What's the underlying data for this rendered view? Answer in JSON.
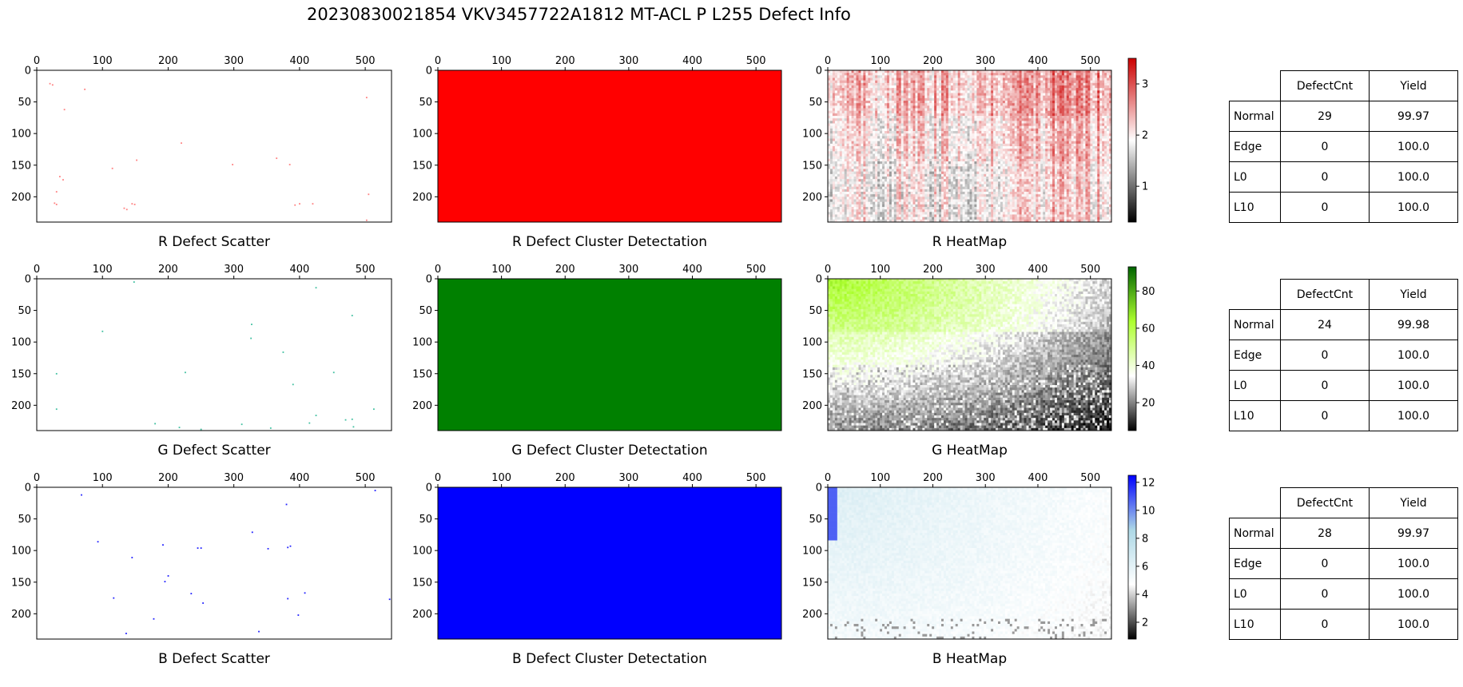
{
  "title": "20230830021854 VKV3457722A1812 MT-ACL P L255 Defect Info",
  "chart_data": [
    {
      "type": "scatter",
      "row": "R",
      "title": "R Defect Scatter",
      "color": "#ff8080",
      "xlim": [
        0,
        540
      ],
      "ylim": [
        240,
        0
      ],
      "xticks": [
        0,
        100,
        200,
        300,
        400,
        500
      ],
      "yticks": [
        0,
        50,
        100,
        150,
        200
      ],
      "points": [
        [
          20,
          21
        ],
        [
          24,
          23
        ],
        [
          73,
          30
        ],
        [
          42,
          62
        ],
        [
          220,
          115
        ],
        [
          115,
          155
        ],
        [
          152,
          142
        ],
        [
          35,
          168
        ],
        [
          40,
          173
        ],
        [
          298,
          149
        ],
        [
          365,
          139
        ],
        [
          385,
          149
        ],
        [
          30,
          192
        ],
        [
          27,
          210
        ],
        [
          30,
          212
        ],
        [
          145,
          211
        ],
        [
          149,
          212
        ],
        [
          133,
          218
        ],
        [
          137,
          220
        ],
        [
          393,
          213
        ],
        [
          400,
          211
        ],
        [
          420,
          211
        ],
        [
          505,
          196
        ],
        [
          502,
          43
        ],
        [
          502,
          237
        ]
      ]
    },
    {
      "type": "heatmap",
      "row": "R",
      "title": "R Defect Cluster Detectation",
      "color": "#ff0000",
      "xlim": [
        0,
        540
      ],
      "ylim": [
        240,
        0
      ],
      "xticks": [
        0,
        100,
        200,
        300,
        400,
        500
      ],
      "yticks": [
        0,
        50,
        100,
        150,
        200
      ]
    },
    {
      "type": "heatmap",
      "row": "R",
      "title": "R HeatMap",
      "cmap": [
        "#000000",
        "#ffffff",
        "#cc0000"
      ],
      "clim": [
        0.3,
        3.5
      ],
      "colorbar_ticks": [
        1,
        2,
        3
      ],
      "xlim": [
        0,
        540
      ],
      "ylim": [
        240,
        0
      ],
      "xticks": [
        0,
        100,
        200,
        300,
        400,
        500
      ],
      "yticks": [
        0,
        50,
        100,
        150,
        200
      ]
    },
    {
      "type": "table",
      "row": "R",
      "columns": [
        "DefectCnt",
        "Yield"
      ],
      "rows": [
        {
          "label": "Normal",
          "DefectCnt": "29",
          "Yield": "99.97"
        },
        {
          "label": "Edge",
          "DefectCnt": "0",
          "Yield": "100.0"
        },
        {
          "label": "L0",
          "DefectCnt": "0",
          "Yield": "100.0"
        },
        {
          "label": "L10",
          "DefectCnt": "0",
          "Yield": "100.0"
        }
      ]
    },
    {
      "type": "scatter",
      "row": "G",
      "title": "G Defect Scatter",
      "color": "#40c0a0",
      "xlim": [
        0,
        540
      ],
      "ylim": [
        240,
        0
      ],
      "xticks": [
        0,
        100,
        200,
        300,
        400,
        500
      ],
      "yticks": [
        0,
        50,
        100,
        150,
        200
      ],
      "points": [
        [
          148,
          5
        ],
        [
          425,
          14
        ],
        [
          480,
          58
        ],
        [
          100,
          83
        ],
        [
          327,
          72
        ],
        [
          326,
          94
        ],
        [
          375,
          116
        ],
        [
          30,
          150
        ],
        [
          226,
          148
        ],
        [
          390,
          167
        ],
        [
          452,
          148
        ],
        [
          30,
          206
        ],
        [
          180,
          229
        ],
        [
          217,
          235
        ],
        [
          312,
          230
        ],
        [
          356,
          236
        ],
        [
          415,
          228
        ],
        [
          425,
          216
        ],
        [
          470,
          223
        ],
        [
          480,
          222
        ],
        [
          482,
          234
        ],
        [
          513,
          206
        ],
        [
          250,
          238
        ]
      ]
    },
    {
      "type": "heatmap",
      "row": "G",
      "title": "G Defect Cluster Detectation",
      "color": "#008000",
      "xlim": [
        0,
        540
      ],
      "ylim": [
        240,
        0
      ],
      "xticks": [
        0,
        100,
        200,
        300,
        400,
        500
      ],
      "yticks": [
        0,
        50,
        100,
        150,
        200
      ]
    },
    {
      "type": "heatmap",
      "row": "G",
      "title": "G HeatMap",
      "cmap": [
        "#000000",
        "#ffffff",
        "#adff2f",
        "#006400"
      ],
      "clim": [
        5,
        93
      ],
      "colorbar_ticks": [
        20,
        40,
        60,
        80
      ],
      "xlim": [
        0,
        540
      ],
      "ylim": [
        240,
        0
      ],
      "xticks": [
        0,
        100,
        200,
        300,
        400,
        500
      ],
      "yticks": [
        0,
        50,
        100,
        150,
        200
      ]
    },
    {
      "type": "table",
      "row": "G",
      "columns": [
        "DefectCnt",
        "Yield"
      ],
      "rows": [
        {
          "label": "Normal",
          "DefectCnt": "24",
          "Yield": "99.98"
        },
        {
          "label": "Edge",
          "DefectCnt": "0",
          "Yield": "100.0"
        },
        {
          "label": "L0",
          "DefectCnt": "0",
          "Yield": "100.0"
        },
        {
          "label": "L10",
          "DefectCnt": "0",
          "Yield": "100.0"
        }
      ]
    },
    {
      "type": "scatter",
      "row": "B",
      "title": "B Defect Scatter",
      "color": "#2020ff",
      "xlim": [
        0,
        540
      ],
      "ylim": [
        240,
        0
      ],
      "xticks": [
        0,
        100,
        200,
        300,
        400,
        500
      ],
      "yticks": [
        0,
        50,
        100,
        150,
        200
      ],
      "points": [
        [
          68,
          12
        ],
        [
          515,
          5
        ],
        [
          380,
          27
        ],
        [
          93,
          86
        ],
        [
          192,
          91
        ],
        [
          328,
          71
        ],
        [
          245,
          96
        ],
        [
          250,
          96
        ],
        [
          352,
          97
        ],
        [
          382,
          95
        ],
        [
          386,
          93
        ],
        [
          145,
          111
        ],
        [
          200,
          140
        ],
        [
          195,
          149
        ],
        [
          117,
          175
        ],
        [
          235,
          168
        ],
        [
          253,
          183
        ],
        [
          382,
          176
        ],
        [
          408,
          167
        ],
        [
          178,
          208
        ],
        [
          398,
          202
        ],
        [
          537,
          177
        ],
        [
          136,
          231
        ],
        [
          338,
          228
        ]
      ]
    },
    {
      "type": "heatmap",
      "row": "B",
      "title": "B Defect Cluster Detectation",
      "color": "#0000ff",
      "xlim": [
        0,
        540
      ],
      "ylim": [
        240,
        0
      ],
      "xticks": [
        0,
        100,
        200,
        300,
        400,
        500
      ],
      "yticks": [
        0,
        50,
        100,
        150,
        200
      ]
    },
    {
      "type": "heatmap",
      "row": "B",
      "title": "B HeatMap",
      "cmap": [
        "#000000",
        "#ffffff",
        "#add8e6",
        "#0000ff"
      ],
      "clim": [
        0.8,
        12.5
      ],
      "colorbar_ticks": [
        2,
        4,
        6,
        8,
        10,
        12
      ],
      "xlim": [
        0,
        540
      ],
      "ylim": [
        240,
        0
      ],
      "xticks": [
        0,
        100,
        200,
        300,
        400,
        500
      ],
      "yticks": [
        0,
        50,
        100,
        150,
        200
      ]
    },
    {
      "type": "table",
      "row": "B",
      "columns": [
        "DefectCnt",
        "Yield"
      ],
      "rows": [
        {
          "label": "Normal",
          "DefectCnt": "28",
          "Yield": "99.97"
        },
        {
          "label": "Edge",
          "DefectCnt": "0",
          "Yield": "100.0"
        },
        {
          "label": "L0",
          "DefectCnt": "0",
          "Yield": "100.0"
        },
        {
          "label": "L10",
          "DefectCnt": "0",
          "Yield": "100.0"
        }
      ]
    }
  ]
}
